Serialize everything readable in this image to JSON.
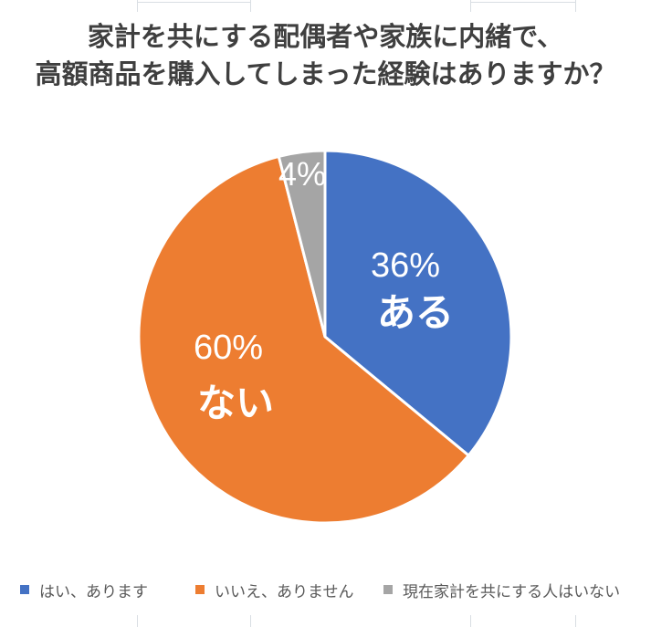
{
  "title": {
    "line1": "家計を共にする配偶者や家族に内緒で、",
    "line2": "高額商品を購入してしまった経験はありますか？"
  },
  "chart_data": {
    "type": "pie",
    "title": "家計を共にする配偶者や家族に内緒で、高額商品を購入してしまった経験はありますか？",
    "start_angle_deg": 0,
    "direction": "clockwise",
    "legend_position": "bottom",
    "total_percent": 100,
    "slices": [
      {
        "legend": "はい、あります",
        "label": "ある",
        "value": 36,
        "percent_label": "36%",
        "color": "#4472C4"
      },
      {
        "legend": "いいえ、ありません",
        "label": "ない",
        "value": 60,
        "percent_label": "60%",
        "color": "#ED7D31"
      },
      {
        "legend": "現在家計を共にする人はいない",
        "label": "",
        "value": 4,
        "percent_label": "4%",
        "color": "#A5A5A5"
      }
    ]
  },
  "colors": {
    "title_text": "#3f3f3f",
    "legend_text": "#595959",
    "data_label_text": "#ffffff",
    "slice_border": "#ffffff",
    "gridline": "#d9dee3"
  }
}
